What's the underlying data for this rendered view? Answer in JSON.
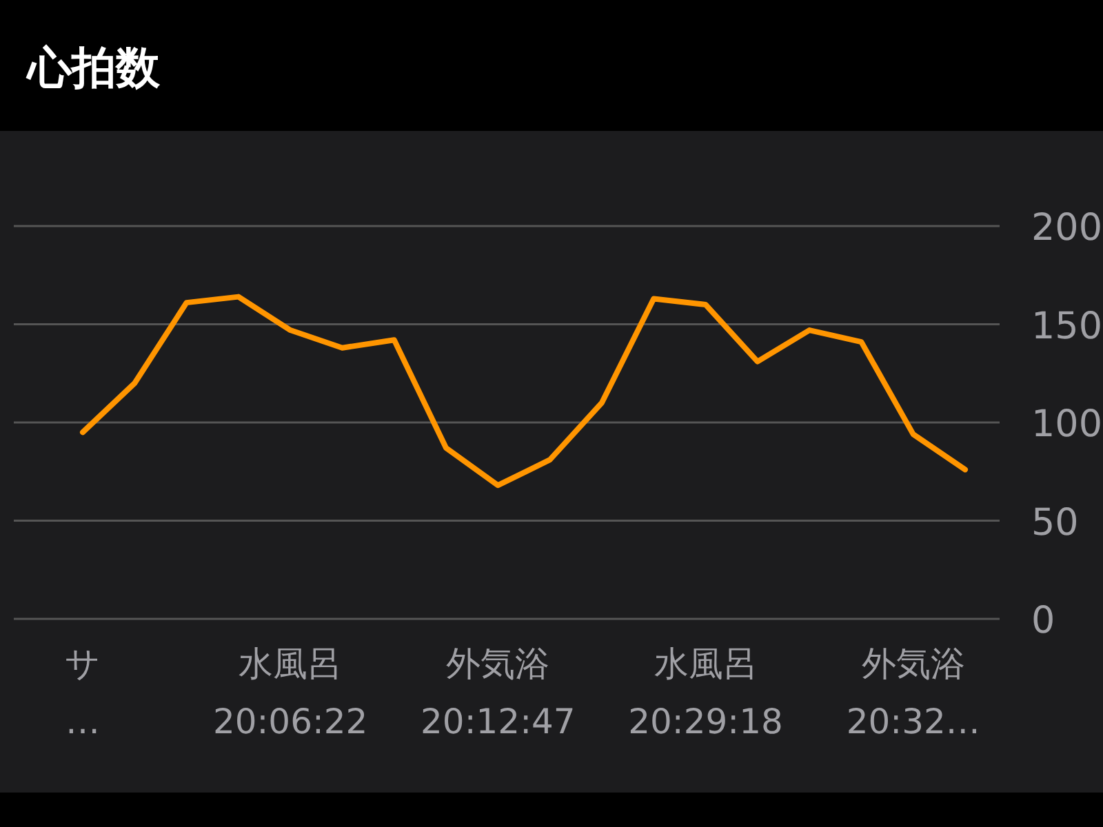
{
  "chart_data": {
    "type": "line",
    "title": "心拍数",
    "categories": [
      "サ\n…",
      null,
      null,
      null,
      "水風呂\n20:06:22",
      null,
      null,
      null,
      "外気浴\n20:12:47",
      null,
      null,
      null,
      "水風呂\n20:29:18",
      null,
      null,
      null,
      "外気浴\n20:32…",
      null
    ],
    "series": [
      {
        "color": "#ff9500",
        "values": [
          95,
          120,
          161,
          164,
          147,
          138,
          142,
          87,
          68,
          81,
          110,
          163,
          160,
          131,
          147,
          141,
          94,
          76
        ]
      }
    ],
    "ylim": [
      0,
      200
    ],
    "yticks": [
      0,
      50,
      100,
      150,
      200
    ],
    "grid": "y",
    "marker": "none",
    "line_style": "solid"
  }
}
